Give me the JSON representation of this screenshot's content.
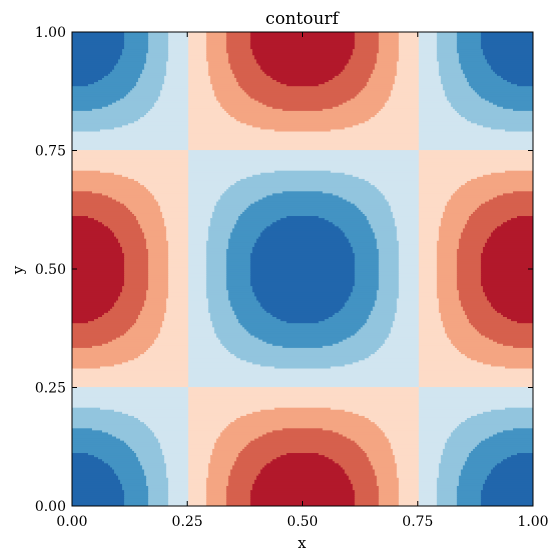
{
  "chart_data": {
    "type": "heatmap",
    "subtype": "filled-contour",
    "title": "contourf",
    "xlabel": "x",
    "ylabel": "y",
    "xlim": [
      0,
      1
    ],
    "ylim": [
      0,
      1
    ],
    "xticks": [
      "0.00",
      "0.25",
      "0.50",
      "0.75",
      "1.00"
    ],
    "yticks": [
      "0.00",
      "0.25",
      "0.50",
      "0.75",
      "1.00"
    ],
    "grid": false,
    "colorbar": false,
    "levels": [
      -1.0,
      -0.75,
      -0.5,
      -0.25,
      0.0,
      0.25,
      0.5,
      0.75,
      1.0
    ],
    "colors": [
      "#053061",
      "#2166ac",
      "#4393c3",
      "#92c5de",
      "#d1e5f0",
      "#fddbc7",
      "#f4a582",
      "#d6604d",
      "#b2182b",
      "#67001f"
    ],
    "field": "z = -cos(2πx)·cos(2πy) on a 33×33 grid",
    "grid_size": [
      33,
      33
    ]
  }
}
